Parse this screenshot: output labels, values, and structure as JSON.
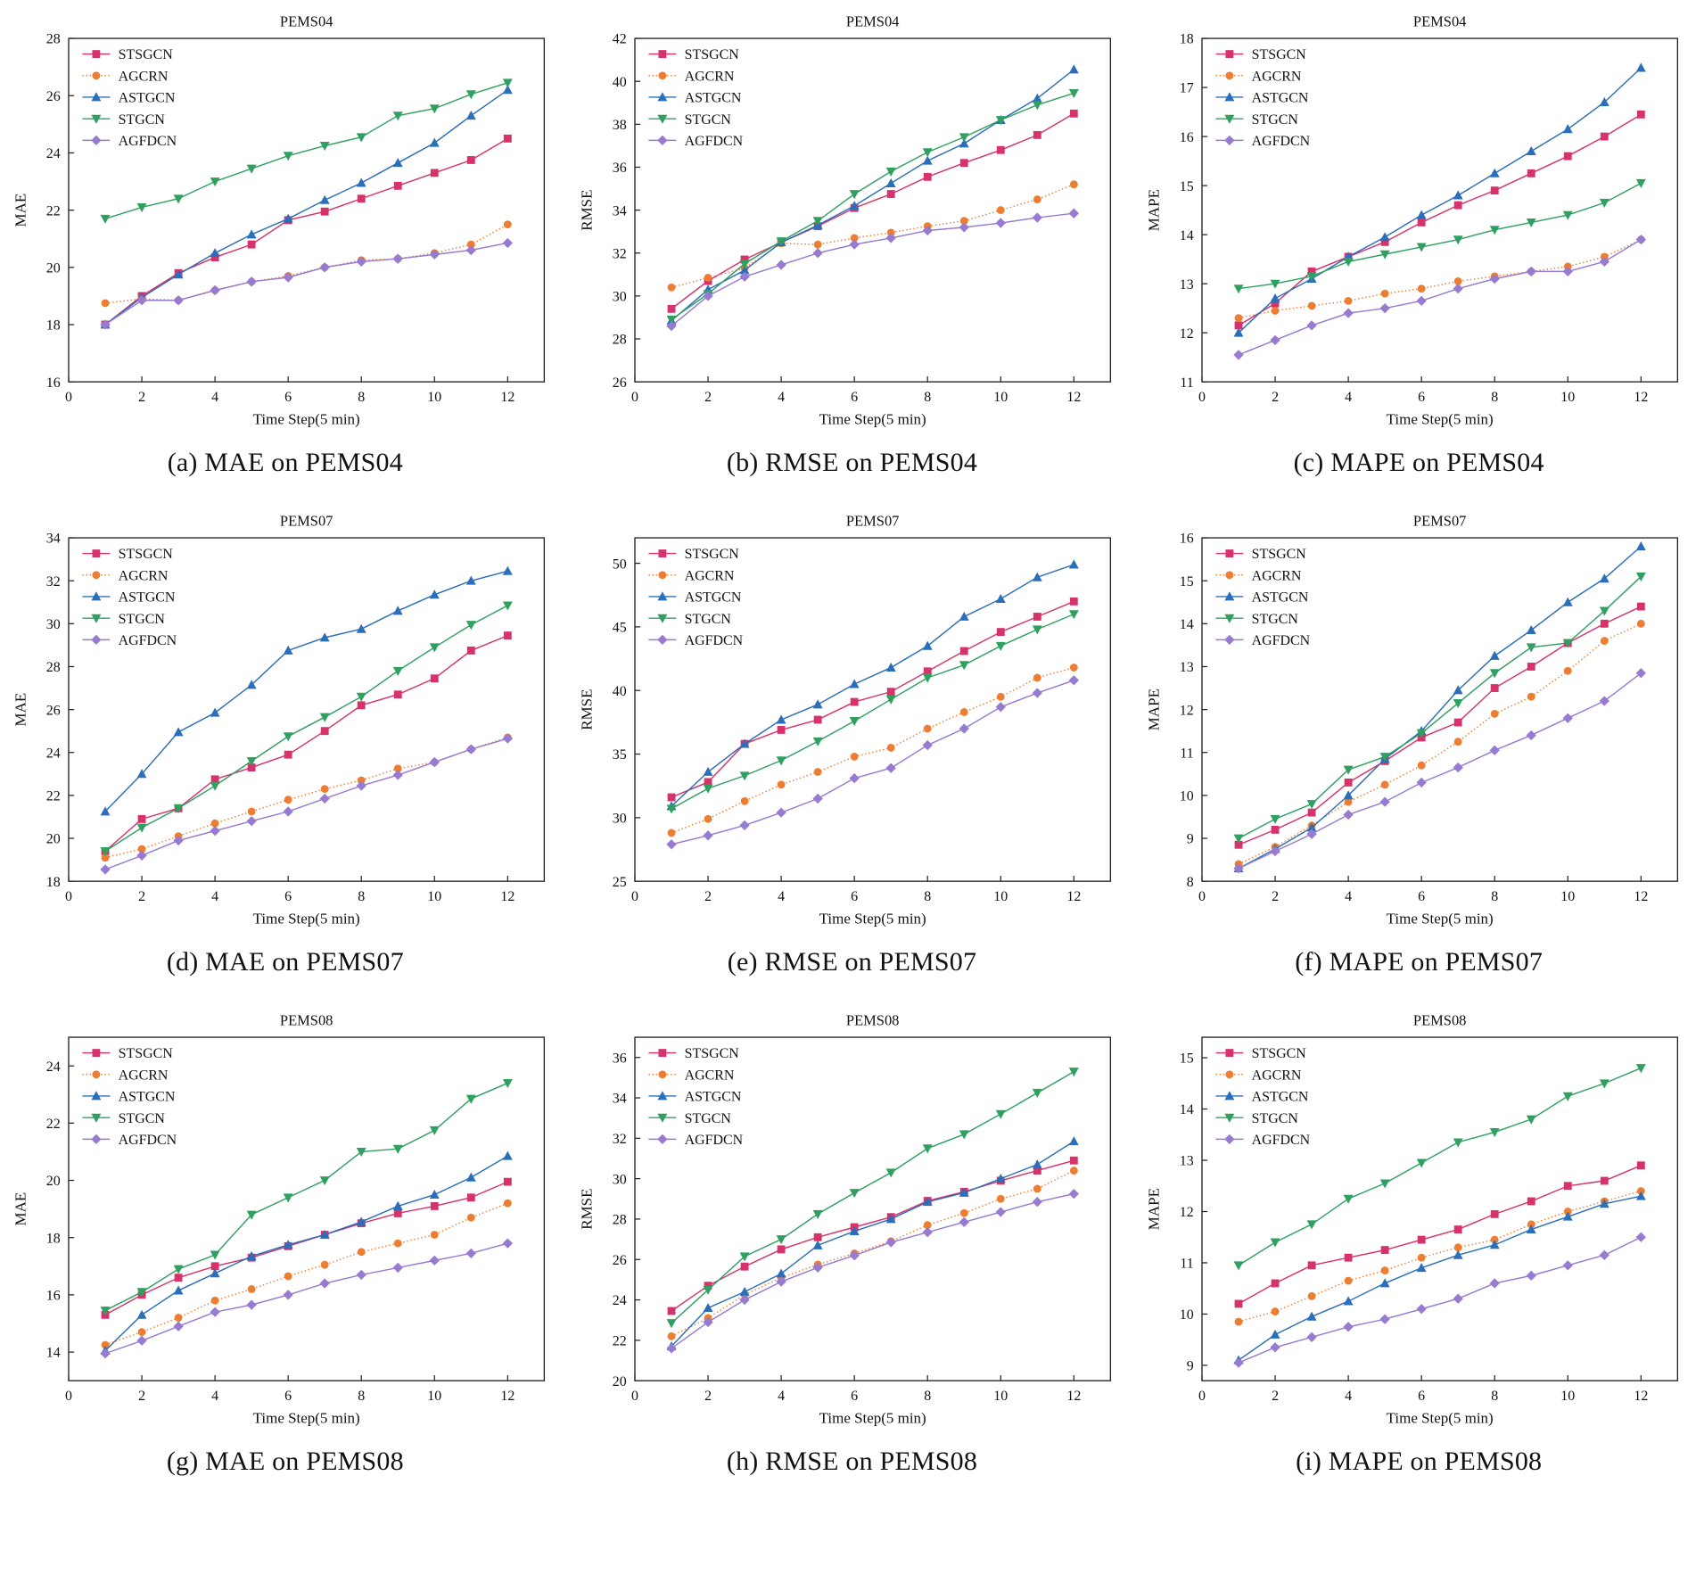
{
  "page_background": "#ffffff",
  "legend_position": "top-left",
  "axis_color": "#222222",
  "series_meta": [
    {
      "name": "STSGCN",
      "color": "#d6336c",
      "marker": "square",
      "dash": ""
    },
    {
      "name": "AGCRN",
      "color": "#ed7d31",
      "marker": "circle",
      "dash": "1.4 2.6"
    },
    {
      "name": "ASTGCN",
      "color": "#2b6fba",
      "marker": "triangle-up",
      "dash": ""
    },
    {
      "name": "STGCN",
      "color": "#2fa05f",
      "marker": "triangle-down",
      "dash": ""
    },
    {
      "name": "AGFDCN",
      "color": "#977bd1",
      "marker": "diamond",
      "dash": ""
    }
  ],
  "x": [
    1,
    2,
    3,
    4,
    5,
    6,
    7,
    8,
    9,
    10,
    11,
    12
  ],
  "xlabel": "Time Step(5 min)",
  "xticks": [
    0,
    2,
    4,
    6,
    8,
    10,
    12
  ],
  "xlim": [
    0,
    13
  ],
  "chart_data": [
    {
      "type": "line",
      "title": "PEMS04",
      "ylabel": "MAE",
      "caption": "(a) MAE on PEMS04",
      "ylim": [
        16,
        28
      ],
      "ytick_step": 2,
      "series": [
        {
          "name": "STSGCN",
          "values": [
            18.0,
            19.0,
            19.8,
            20.35,
            20.8,
            21.65,
            21.95,
            22.4,
            22.85,
            23.3,
            23.75,
            24.5
          ]
        },
        {
          "name": "AGCRN",
          "values": [
            18.75,
            18.9,
            18.85,
            19.2,
            19.5,
            19.7,
            20.0,
            20.25,
            20.3,
            20.5,
            20.8,
            21.5
          ]
        },
        {
          "name": "ASTGCN",
          "values": [
            18.0,
            18.95,
            19.75,
            20.5,
            21.15,
            21.7,
            22.35,
            22.95,
            23.65,
            24.35,
            25.3,
            26.2
          ]
        },
        {
          "name": "STGCN",
          "values": [
            21.7,
            22.1,
            22.4,
            23.0,
            23.45,
            23.9,
            24.25,
            24.55,
            25.3,
            25.55,
            26.05,
            26.45
          ]
        },
        {
          "name": "AGFDCN",
          "values": [
            18.0,
            18.85,
            18.85,
            19.2,
            19.5,
            19.65,
            20.0,
            20.2,
            20.3,
            20.45,
            20.6,
            20.85
          ]
        }
      ]
    },
    {
      "type": "line",
      "title": "PEMS04",
      "ylabel": "RMSE",
      "caption": "(b) RMSE on PEMS04",
      "ylim": [
        26,
        42
      ],
      "ytick_step": 2,
      "series": [
        {
          "name": "STSGCN",
          "values": [
            29.4,
            30.7,
            31.7,
            32.5,
            33.25,
            34.1,
            34.75,
            35.55,
            36.2,
            36.8,
            37.5,
            38.5
          ]
        },
        {
          "name": "AGCRN",
          "values": [
            30.4,
            30.85,
            31.3,
            32.45,
            32.4,
            32.7,
            32.95,
            33.25,
            33.5,
            34.0,
            34.5,
            35.2
          ]
        },
        {
          "name": "ASTGCN",
          "values": [
            28.85,
            30.3,
            31.2,
            32.5,
            33.3,
            34.2,
            35.25,
            36.3,
            37.1,
            38.2,
            39.2,
            40.55
          ]
        },
        {
          "name": "STGCN",
          "values": [
            28.9,
            30.1,
            31.5,
            32.55,
            33.5,
            34.75,
            35.8,
            36.7,
            37.4,
            38.2,
            38.9,
            39.45
          ]
        },
        {
          "name": "AGFDCN",
          "values": [
            28.6,
            30.0,
            30.9,
            31.45,
            32.0,
            32.4,
            32.7,
            33.05,
            33.2,
            33.4,
            33.65,
            33.85
          ]
        }
      ]
    },
    {
      "type": "line",
      "title": "PEMS04",
      "ylabel": "MAPE",
      "caption": "(c) MAPE on PEMS04",
      "ylim": [
        11,
        18
      ],
      "ytick_step": 1,
      "series": [
        {
          "name": "STSGCN",
          "values": [
            12.15,
            12.6,
            13.25,
            13.55,
            13.85,
            14.25,
            14.6,
            14.9,
            15.25,
            15.6,
            16.0,
            16.45
          ]
        },
        {
          "name": "AGCRN",
          "values": [
            12.3,
            12.45,
            12.55,
            12.65,
            12.8,
            12.9,
            13.05,
            13.15,
            13.25,
            13.35,
            13.55,
            13.9
          ]
        },
        {
          "name": "ASTGCN",
          "values": [
            12.0,
            12.7,
            13.1,
            13.55,
            13.95,
            14.4,
            14.8,
            15.25,
            15.7,
            16.15,
            16.7,
            17.4
          ]
        },
        {
          "name": "STGCN",
          "values": [
            12.9,
            13.0,
            13.15,
            13.45,
            13.6,
            13.75,
            13.9,
            14.1,
            14.25,
            14.4,
            14.65,
            15.05
          ]
        },
        {
          "name": "AGFDCN",
          "values": [
            11.55,
            11.85,
            12.15,
            12.4,
            12.5,
            12.65,
            12.9,
            13.1,
            13.25,
            13.25,
            13.45,
            13.9
          ]
        }
      ]
    },
    {
      "type": "line",
      "title": "PEMS07",
      "ylabel": "MAE",
      "caption": "(d) MAE on PEMS07",
      "ylim": [
        18,
        34
      ],
      "ytick_step": 2,
      "series": [
        {
          "name": "STSGCN",
          "values": [
            19.4,
            20.9,
            21.4,
            22.75,
            23.3,
            23.9,
            25.0,
            26.2,
            26.7,
            27.45,
            28.75,
            29.45
          ]
        },
        {
          "name": "AGCRN",
          "values": [
            19.1,
            19.5,
            20.1,
            20.7,
            21.25,
            21.8,
            22.3,
            22.7,
            23.25,
            23.55,
            24.15,
            24.7
          ]
        },
        {
          "name": "ASTGCN",
          "values": [
            21.25,
            23.0,
            24.95,
            25.85,
            27.15,
            28.75,
            29.35,
            29.75,
            30.6,
            31.35,
            32.0,
            32.45
          ]
        },
        {
          "name": "STGCN",
          "values": [
            19.4,
            20.5,
            21.4,
            22.45,
            23.6,
            24.75,
            25.65,
            26.6,
            27.8,
            28.9,
            29.95,
            30.85
          ]
        },
        {
          "name": "AGFDCN",
          "values": [
            18.55,
            19.2,
            19.9,
            20.35,
            20.8,
            21.25,
            21.85,
            22.45,
            22.95,
            23.55,
            24.15,
            24.65
          ]
        }
      ]
    },
    {
      "type": "line",
      "title": "PEMS07",
      "ylabel": "RMSE",
      "caption": "(e) RMSE on PEMS07",
      "ylim": [
        25,
        52
      ],
      "ytick_step": 5,
      "series": [
        {
          "name": "STSGCN",
          "values": [
            31.6,
            32.8,
            35.8,
            36.9,
            37.7,
            39.1,
            39.9,
            41.5,
            43.1,
            44.6,
            45.8,
            47.0
          ]
        },
        {
          "name": "AGCRN",
          "values": [
            28.8,
            29.9,
            31.3,
            32.6,
            33.6,
            34.8,
            35.5,
            37.0,
            38.3,
            39.5,
            41.0,
            41.8
          ]
        },
        {
          "name": "ASTGCN",
          "values": [
            30.9,
            33.6,
            35.8,
            37.7,
            38.9,
            40.5,
            41.8,
            43.5,
            45.8,
            47.2,
            48.9,
            49.9
          ]
        },
        {
          "name": "STGCN",
          "values": [
            30.7,
            32.3,
            33.3,
            34.5,
            36.0,
            37.6,
            39.3,
            41.0,
            42.0,
            43.5,
            44.8,
            46.0
          ]
        },
        {
          "name": "AGFDCN",
          "values": [
            27.9,
            28.6,
            29.4,
            30.4,
            31.5,
            33.1,
            33.9,
            35.7,
            37.0,
            38.7,
            39.8,
            40.8
          ]
        }
      ]
    },
    {
      "type": "line",
      "title": "PEMS07",
      "ylabel": "MAPE",
      "caption": "(f) MAPE on PEMS07",
      "ylim": [
        8,
        16
      ],
      "ytick_step": 1,
      "series": [
        {
          "name": "STSGCN",
          "values": [
            8.85,
            9.2,
            9.6,
            10.3,
            10.8,
            11.35,
            11.7,
            12.5,
            13.0,
            13.55,
            14.0,
            14.4
          ]
        },
        {
          "name": "AGCRN",
          "values": [
            8.4,
            8.8,
            9.3,
            9.85,
            10.25,
            10.7,
            11.25,
            11.9,
            12.3,
            12.9,
            13.6,
            14.0
          ]
        },
        {
          "name": "ASTGCN",
          "values": [
            8.3,
            8.75,
            9.25,
            10.0,
            10.85,
            11.5,
            12.45,
            13.25,
            13.85,
            14.5,
            15.05,
            15.8
          ]
        },
        {
          "name": "STGCN",
          "values": [
            9.0,
            9.45,
            9.8,
            10.6,
            10.9,
            11.45,
            12.15,
            12.85,
            13.45,
            13.55,
            14.3,
            15.1
          ]
        },
        {
          "name": "AGFDCN",
          "values": [
            8.3,
            8.7,
            9.1,
            9.55,
            9.85,
            10.3,
            10.65,
            11.05,
            11.4,
            11.8,
            12.2,
            12.85
          ]
        }
      ]
    },
    {
      "type": "line",
      "title": "PEMS08",
      "ylabel": "MAE",
      "caption": "(g) MAE on PEMS08",
      "ylim": [
        13,
        25
      ],
      "ytick_step": 2,
      "ytick_start": 14,
      "series": [
        {
          "name": "STSGCN",
          "values": [
            15.3,
            16.0,
            16.6,
            17.0,
            17.3,
            17.7,
            18.1,
            18.5,
            18.85,
            19.1,
            19.4,
            19.95
          ]
        },
        {
          "name": "AGCRN",
          "values": [
            14.25,
            14.7,
            15.2,
            15.8,
            16.2,
            16.65,
            17.05,
            17.5,
            17.8,
            18.1,
            18.7,
            19.2
          ]
        },
        {
          "name": "ASTGCN",
          "values": [
            14.05,
            15.3,
            16.15,
            16.75,
            17.35,
            17.75,
            18.1,
            18.55,
            19.1,
            19.5,
            20.1,
            20.85
          ]
        },
        {
          "name": "STGCN",
          "values": [
            15.45,
            16.1,
            16.9,
            17.4,
            18.8,
            19.4,
            20.0,
            21.0,
            21.1,
            21.75,
            22.85,
            23.4
          ]
        },
        {
          "name": "AGFDCN",
          "values": [
            13.95,
            14.4,
            14.9,
            15.4,
            15.65,
            16.0,
            16.4,
            16.7,
            16.95,
            17.2,
            17.45,
            17.8
          ]
        }
      ]
    },
    {
      "type": "line",
      "title": "PEMS08",
      "ylabel": "RMSE",
      "caption": "(h) RMSE on PEMS08",
      "ylim": [
        20,
        37
      ],
      "ytick_step": 2,
      "series": [
        {
          "name": "STSGCN",
          "values": [
            23.45,
            24.7,
            25.65,
            26.5,
            27.1,
            27.6,
            28.1,
            28.9,
            29.35,
            29.9,
            30.4,
            30.9
          ]
        },
        {
          "name": "AGCRN",
          "values": [
            22.2,
            23.1,
            24.25,
            25.1,
            25.75,
            26.3,
            26.9,
            27.7,
            28.3,
            29.0,
            29.5,
            30.4
          ]
        },
        {
          "name": "ASTGCN",
          "values": [
            21.7,
            23.6,
            24.4,
            25.3,
            26.7,
            27.4,
            28.0,
            28.85,
            29.3,
            30.0,
            30.7,
            31.85
          ]
        },
        {
          "name": "STGCN",
          "values": [
            22.85,
            24.5,
            26.15,
            27.0,
            28.25,
            29.3,
            30.3,
            31.5,
            32.2,
            33.2,
            34.25,
            35.3
          ]
        },
        {
          "name": "AGFDCN",
          "values": [
            21.6,
            22.9,
            24.0,
            24.9,
            25.6,
            26.2,
            26.85,
            27.35,
            27.85,
            28.35,
            28.85,
            29.25
          ]
        }
      ]
    },
    {
      "type": "line",
      "title": "PEMS08",
      "ylabel": "MAPE",
      "caption": "(i) MAPE on PEMS08",
      "ylim": [
        8.7,
        15.4
      ],
      "ytick_step": 1,
      "ytick_start": 9,
      "series": [
        {
          "name": "STSGCN",
          "values": [
            10.2,
            10.6,
            10.95,
            11.1,
            11.25,
            11.45,
            11.65,
            11.95,
            12.2,
            12.5,
            12.6,
            12.9
          ]
        },
        {
          "name": "AGCRN",
          "values": [
            9.85,
            10.05,
            10.35,
            10.65,
            10.85,
            11.1,
            11.3,
            11.45,
            11.75,
            12.0,
            12.2,
            12.4
          ]
        },
        {
          "name": "ASTGCN",
          "values": [
            9.1,
            9.6,
            9.95,
            10.25,
            10.6,
            10.9,
            11.15,
            11.35,
            11.65,
            11.9,
            12.15,
            12.3
          ]
        },
        {
          "name": "STGCN",
          "values": [
            10.95,
            11.4,
            11.75,
            12.25,
            12.55,
            12.95,
            13.35,
            13.55,
            13.8,
            14.25,
            14.5,
            14.8
          ]
        },
        {
          "name": "AGFDCN",
          "values": [
            9.05,
            9.35,
            9.55,
            9.75,
            9.9,
            10.1,
            10.3,
            10.6,
            10.75,
            10.95,
            11.15,
            11.5
          ]
        }
      ]
    }
  ]
}
